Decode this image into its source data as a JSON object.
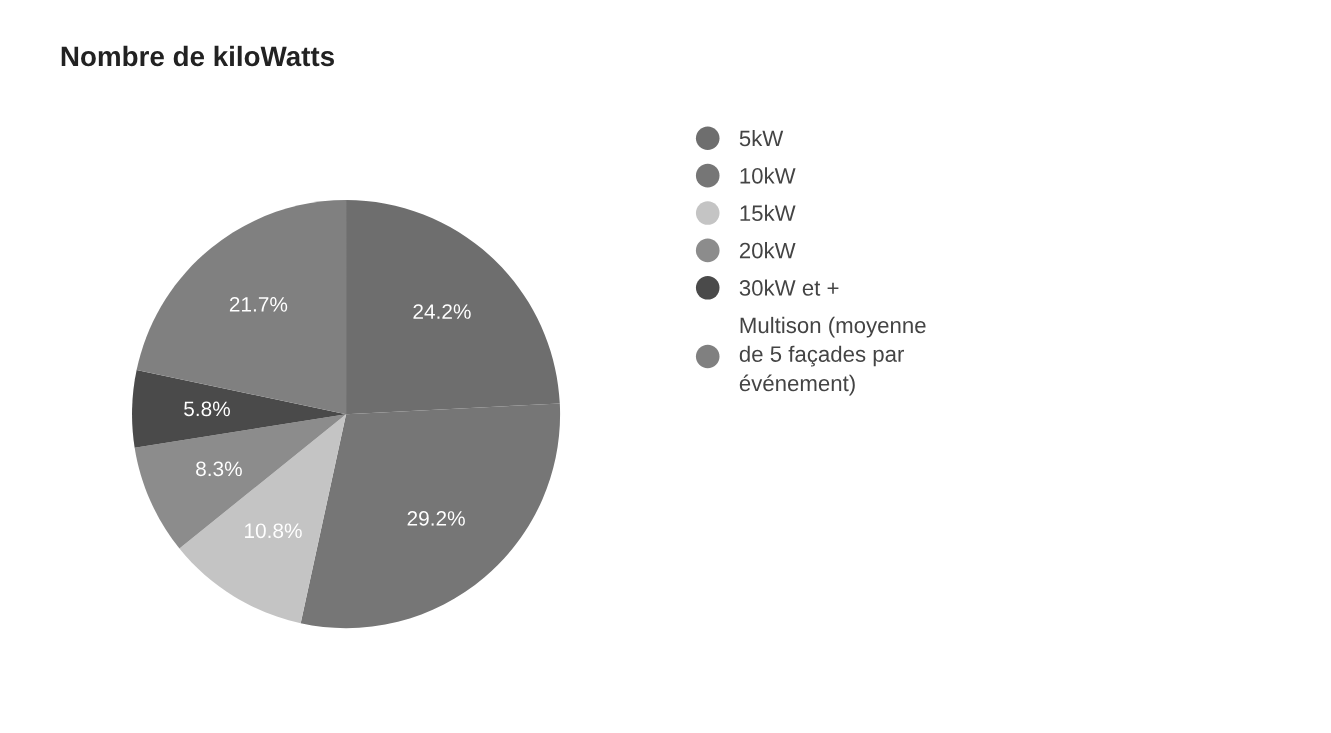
{
  "chart_data": {
    "type": "pie",
    "title": "Nombre de kiloWatts",
    "categories": [
      "5kW",
      "10kW",
      "15kW",
      "20kW",
      "30kW et +",
      "Multison (moyenne de 5 façades par événement)"
    ],
    "values": [
      24.2,
      29.2,
      10.8,
      8.3,
      5.8,
      21.7
    ],
    "colors": [
      "#6e6e6e",
      "#767676",
      "#c4c4c4",
      "#8c8c8c",
      "#4a4a4a",
      "#808080"
    ],
    "value_labels": [
      "24.2%",
      "29.2%",
      "10.8%",
      "8.3%",
      "5.8%",
      "21.7%"
    ],
    "legend": "right"
  }
}
